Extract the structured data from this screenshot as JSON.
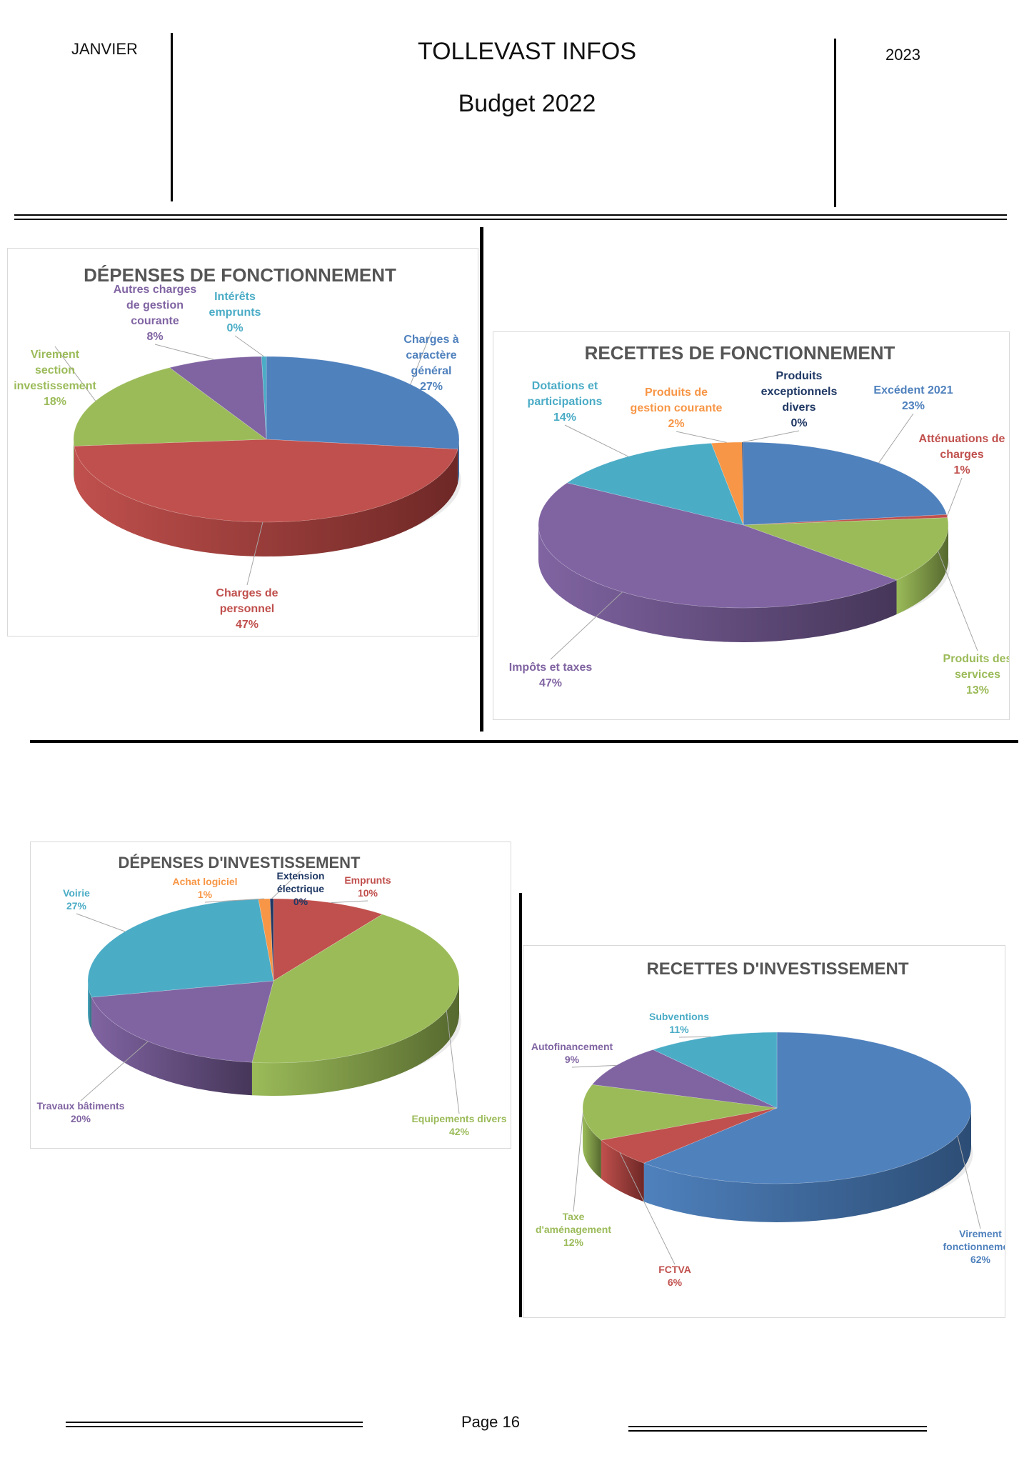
{
  "header": {
    "month": "JANVIER",
    "title": "TOLLEVAST INFOS",
    "subtitle": "Budget 2022",
    "year": "2023"
  },
  "footer": {
    "page": "Page 16"
  },
  "chart_data": [
    {
      "type": "pie",
      "title": "DÉPENSES DE FONCTIONNEMENT",
      "slices": [
        {
          "label": "Charges à caractère général",
          "value": 27,
          "pct_text": "27%",
          "color": "#4f81bd",
          "dark": "#2c4d75"
        },
        {
          "label": "Charges de personnel",
          "value": 47,
          "pct_text": "47%",
          "color": "#c0504d",
          "dark": "#6e2826"
        },
        {
          "label": "Virement section investissement",
          "value": 18,
          "pct_text": "18%",
          "color": "#9bbb59",
          "dark": "#56692f"
        },
        {
          "label": "Autres charges de gestion courante",
          "value": 8,
          "pct_text": "8%",
          "color": "#8064a2",
          "dark": "#463659"
        },
        {
          "label": "Intérêts emprunts",
          "value": 0.4,
          "pct_text": "0%",
          "color": "#4bacc6",
          "dark": "#2b6575"
        }
      ]
    },
    {
      "type": "pie",
      "title": "RECETTES DE FONCTIONNEMENT",
      "slices": [
        {
          "label": "Excédent 2021",
          "value": 23,
          "pct_text": "23%",
          "color": "#4f81bd",
          "dark": "#2c4d75"
        },
        {
          "label": "Atténuations de charges",
          "value": 0.6,
          "pct_text": "1%",
          "color": "#c0504d",
          "dark": "#6e2826"
        },
        {
          "label": "Produits des services",
          "value": 13,
          "pct_text": "13%",
          "color": "#9bbb59",
          "dark": "#56692f"
        },
        {
          "label": "Impôts et taxes",
          "value": 47,
          "pct_text": "47%",
          "color": "#8064a2",
          "dark": "#463659"
        },
        {
          "label": "Dotations et participations",
          "value": 14,
          "pct_text": "14%",
          "color": "#4bacc6",
          "dark": "#2b6575"
        },
        {
          "label": "Produits de gestion courante",
          "value": 2.4,
          "pct_text": "2%",
          "color": "#f79646",
          "dark": "#9a5a26"
        },
        {
          "label": "Produits exceptionnels divers",
          "value": 0.1,
          "pct_text": "0%",
          "color": "#1f3864",
          "dark": "#13223d"
        }
      ]
    },
    {
      "type": "pie",
      "title": "DÉPENSES D'INVESTISSEMENT",
      "slices": [
        {
          "label": "Emprunts",
          "value": 10,
          "pct_text": "10%",
          "color": "#c0504d",
          "dark": "#6e2826"
        },
        {
          "label": "Equipements divers",
          "value": 42,
          "pct_text": "42%",
          "color": "#9bbb59",
          "dark": "#56692f"
        },
        {
          "label": "Travaux bâtiments",
          "value": 20,
          "pct_text": "20%",
          "color": "#8064a2",
          "dark": "#463659"
        },
        {
          "label": "Voirie",
          "value": 27,
          "pct_text": "27%",
          "color": "#4bacc6",
          "dark": "#2b6575"
        },
        {
          "label": "Achat logiciel",
          "value": 1,
          "pct_text": "1%",
          "color": "#f79646",
          "dark": "#9a5a26"
        },
        {
          "label": "Extension électrique",
          "value": 0.3,
          "pct_text": "0%",
          "color": "#1f3864",
          "dark": "#13223d"
        }
      ]
    },
    {
      "type": "pie",
      "title": "RECETTES D'INVESTISSEMENT",
      "slices": [
        {
          "label": "Virement fonctionnement",
          "value": 62,
          "pct_text": "62%",
          "color": "#4f81bd",
          "dark": "#2c4d75"
        },
        {
          "label": "FCTVA",
          "value": 6,
          "pct_text": "6%",
          "color": "#c0504d",
          "dark": "#6e2826"
        },
        {
          "label": "Taxe d'aménagement",
          "value": 12,
          "pct_text": "12%",
          "color": "#9bbb59",
          "dark": "#56692f"
        },
        {
          "label": "Autofinancement",
          "value": 9,
          "pct_text": "9%",
          "color": "#8064a2",
          "dark": "#463659"
        },
        {
          "label": "Subventions",
          "value": 11,
          "pct_text": "11%",
          "color": "#4bacc6",
          "dark": "#2b6575"
        }
      ]
    }
  ]
}
